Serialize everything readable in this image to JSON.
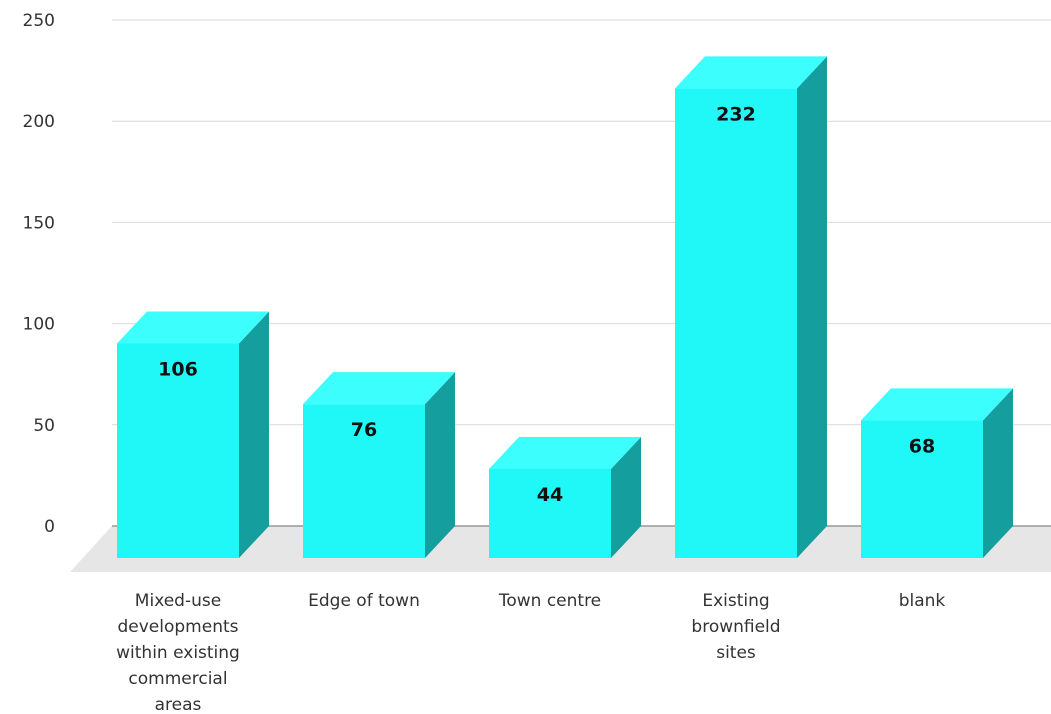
{
  "chart_data": {
    "type": "bar",
    "style": "3d",
    "categories": [
      [
        "Mixed-use",
        "developments",
        "within existing",
        "commercial",
        "areas"
      ],
      [
        "Edge of town"
      ],
      [
        "Town centre"
      ],
      [
        "Existing",
        "brownfield",
        "sites"
      ],
      [
        "blank"
      ]
    ],
    "values": [
      106,
      76,
      44,
      232,
      68
    ],
    "value_labels": [
      "106",
      "76",
      "44",
      "232",
      "68"
    ],
    "yticks": [
      0,
      50,
      100,
      150,
      200,
      250
    ],
    "ylim": [
      0,
      250
    ],
    "grid": true,
    "legend": "none",
    "title": "",
    "xlabel": "",
    "ylabel": "",
    "colors": {
      "bar_front": "#1ff8f6",
      "bar_top": "#3cfffd",
      "bar_side": "#159e9e",
      "gridline": "#d9d9d9",
      "floor": "#e6e6e6"
    }
  }
}
